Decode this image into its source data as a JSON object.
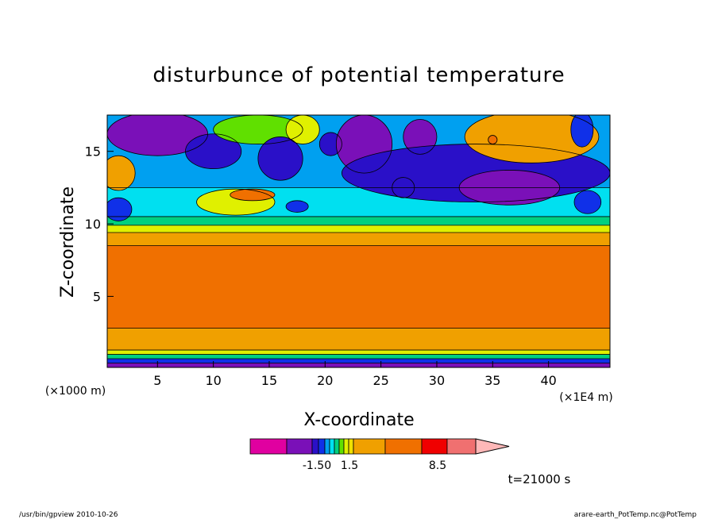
{
  "chart_data": {
    "type": "heatmap",
    "title": "disturbunce of potential temperature",
    "xlabel": "X-coordinate",
    "ylabel": "Z-coordinate",
    "x_unit_left": "(×1000 m)",
    "x_unit_right": "(×1E4 m)",
    "x_ticks": [
      5,
      10,
      15,
      20,
      25,
      30,
      35,
      40
    ],
    "y_ticks": [
      5,
      10,
      15
    ],
    "xlim": [
      0.5,
      45.5
    ],
    "ylim": [
      0.1,
      17.5
    ],
    "grid": false,
    "colorbar": {
      "labels": [
        "-1.50",
        "1.5",
        "8.5"
      ],
      "colors": [
        "#e000a0",
        "#7a10b8",
        "#2a10c8",
        "#1030e8",
        "#00a0f0",
        "#00e0f0",
        "#00d080",
        "#60e000",
        "#e0f000",
        "#f0e000",
        "#f0a000",
        "#f07000",
        "#f00000",
        "#f07070",
        "#ffb8b8"
      ]
    },
    "layers": [
      {
        "zmin": 0.0,
        "zmax": 0.4,
        "color": "#7a10b8"
      },
      {
        "zmin": 0.4,
        "zmax": 0.7,
        "color": "#1030e8"
      },
      {
        "zmin": 0.7,
        "zmax": 1.0,
        "color": "#00d080"
      },
      {
        "zmin": 1.0,
        "zmax": 1.3,
        "color": "#e0f000"
      },
      {
        "zmin": 1.3,
        "zmax": 2.8,
        "color": "#f0a000"
      },
      {
        "zmin": 2.8,
        "zmax": 8.5,
        "color": "#f07000"
      },
      {
        "zmin": 8.5,
        "zmax": 9.4,
        "color": "#f0a000"
      },
      {
        "zmin": 9.4,
        "zmax": 9.9,
        "color": "#e0f000"
      },
      {
        "zmin": 9.9,
        "zmax": 10.5,
        "color": "#00d080"
      },
      {
        "zmin": 10.5,
        "zmax": 12.5,
        "color": "#00e0f0"
      },
      {
        "zmin": 12.5,
        "zmax": 17.5,
        "color": "#00a0f0"
      }
    ],
    "blobs": [
      {
        "x": 1.5,
        "z": 11.0,
        "rx": 1.2,
        "rz": 0.8,
        "color": "#1030e8"
      },
      {
        "x": 1.5,
        "z": 13.5,
        "rx": 1.5,
        "rz": 1.2,
        "color": "#f0a000"
      },
      {
        "x": 5.0,
        "z": 16.2,
        "rx": 4.5,
        "rz": 1.5,
        "color": "#7a10b8"
      },
      {
        "x": 10.0,
        "z": 15.0,
        "rx": 2.5,
        "rz": 1.2,
        "color": "#2a10c8"
      },
      {
        "x": 12.0,
        "z": 11.5,
        "rx": 3.5,
        "rz": 0.9,
        "color": "#e0f000"
      },
      {
        "x": 13.5,
        "z": 12.0,
        "rx": 2.0,
        "rz": 0.4,
        "color": "#f07000"
      },
      {
        "x": 17.5,
        "z": 11.2,
        "rx": 1.0,
        "rz": 0.4,
        "color": "#1030e8"
      },
      {
        "x": 14.0,
        "z": 16.5,
        "rx": 4.0,
        "rz": 1.0,
        "color": "#60e000"
      },
      {
        "x": 18.0,
        "z": 16.5,
        "rx": 1.5,
        "rz": 1.0,
        "color": "#e0f000"
      },
      {
        "x": 16.0,
        "z": 14.5,
        "rx": 2.0,
        "rz": 1.5,
        "color": "#2a10c8"
      },
      {
        "x": 20.5,
        "z": 15.5,
        "rx": 1.0,
        "rz": 0.8,
        "color": "#2a10c8"
      },
      {
        "x": 23.5,
        "z": 15.5,
        "rx": 2.5,
        "rz": 2.0,
        "color": "#7a10b8"
      },
      {
        "x": 28.5,
        "z": 16.0,
        "rx": 1.5,
        "rz": 1.2,
        "color": "#7a10b8"
      },
      {
        "x": 27.0,
        "z": 12.5,
        "rx": 1.0,
        "rz": 0.7,
        "color": "#7a10b8"
      },
      {
        "x": 33.5,
        "z": 13.5,
        "rx": 12.0,
        "rz": 2.0,
        "color": "#2a10c8"
      },
      {
        "x": 36.5,
        "z": 12.5,
        "rx": 4.5,
        "rz": 1.2,
        "color": "#7a10b8"
      },
      {
        "x": 38.5,
        "z": 16.0,
        "rx": 6.0,
        "rz": 1.8,
        "color": "#f0a000"
      },
      {
        "x": 35.0,
        "z": 15.8,
        "rx": 0.4,
        "rz": 0.3,
        "color": "#f07000"
      },
      {
        "x": 43.0,
        "z": 16.5,
        "rx": 1.0,
        "rz": 1.2,
        "color": "#1030e8"
      },
      {
        "x": 43.5,
        "z": 11.5,
        "rx": 1.2,
        "rz": 0.8,
        "color": "#1030e8"
      }
    ]
  },
  "annotation": {
    "time": "t=21000 s",
    "footer_left": "/usr/bin/gpview  2010-10-26",
    "footer_right": "arare-earth_PotTemp.nc@PotTemp"
  }
}
